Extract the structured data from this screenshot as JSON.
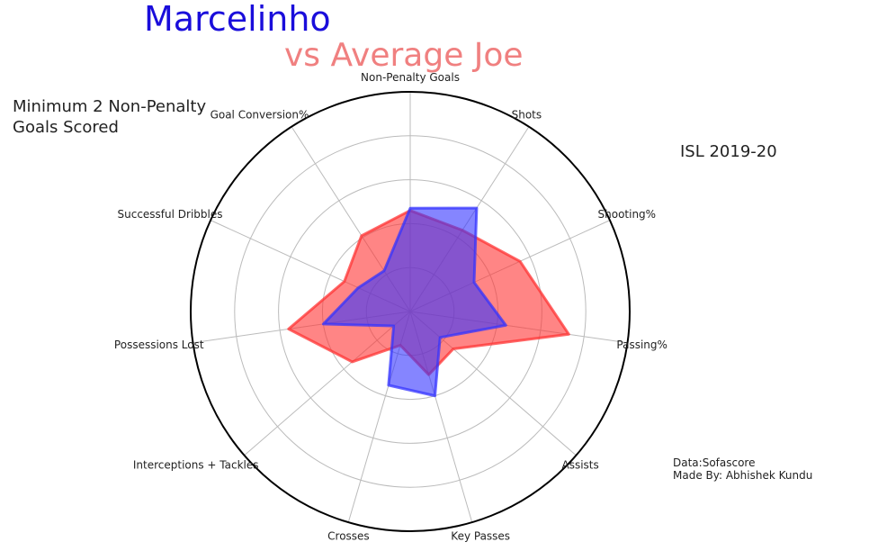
{
  "title_player": "Marcelinho",
  "title_compare": "vs Average Joe",
  "subtitle_left": [
    "Minimum 2 Non-Penalty",
    "Goals Scored"
  ],
  "season": "ISL 2019-20",
  "credits": [
    "Data:Sofascore",
    "Made By: Abhishek Kundu"
  ],
  "colors": {
    "player": "#1a0ddb",
    "compare": "#f08080",
    "player_fill": "#3333ff",
    "compare_fill": "#ff3333",
    "grid": "#bbbbbb"
  },
  "chart_data": {
    "type": "radar",
    "categories": [
      "Non-Penalty Goals",
      "Shots",
      "Shooting%",
      "Passing%",
      "Assists",
      "Key Passes",
      "Crosses",
      "Interceptions + Tackles",
      "Possessions Lost",
      "Successful Dribbles",
      "Goal Conversion%"
    ],
    "rlim": [
      0,
      1
    ],
    "grid_rings": 5,
    "series": [
      {
        "name": "Marcelinho",
        "values": [
          0.47,
          0.56,
          0.32,
          0.44,
          0.18,
          0.4,
          0.35,
          0.1,
          0.4,
          0.26,
          0.22
        ]
      },
      {
        "name": "Average Joe",
        "values": [
          0.46,
          0.44,
          0.55,
          0.73,
          0.26,
          0.3,
          0.16,
          0.35,
          0.56,
          0.33,
          0.41
        ]
      }
    ]
  }
}
